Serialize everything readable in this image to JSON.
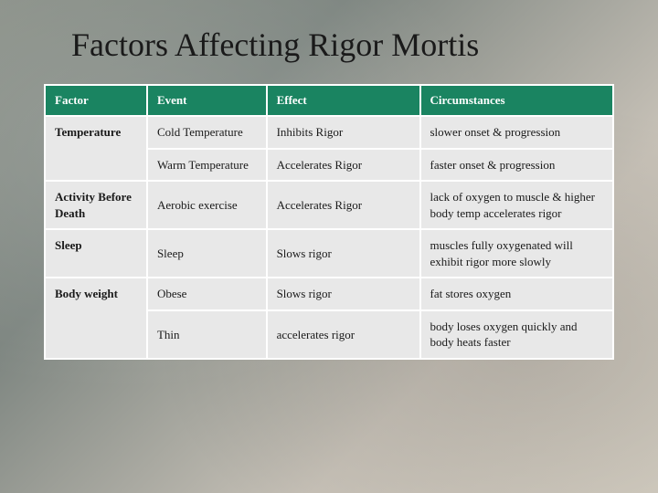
{
  "title": "Factors Affecting Rigor Mortis",
  "headers": {
    "c0": "Factor",
    "c1": "Event",
    "c2": "Effect",
    "c3": "Circumstances"
  },
  "rows": {
    "r0": {
      "factor": "",
      "event": "Cold Temperature",
      "effect": "Inhibits Rigor",
      "circ": "slower onset & progression"
    },
    "r1": {
      "factor": "Temperature",
      "event": "Warm Temperature",
      "effect": "Accelerates Rigor",
      "circ": "faster onset & progression"
    },
    "r2": {
      "factor": "Activity Before Death",
      "event": "Aerobic exercise",
      "effect": "Accelerates Rigor",
      "circ": "lack of oxygen to muscle & higher body temp accelerates rigor"
    },
    "r3": {
      "factor": "Sleep",
      "event": "Sleep",
      "effect": "Slows rigor",
      "circ": "muscles fully oxygenated will exhibit rigor more slowly"
    },
    "r4": {
      "factor": "",
      "event": "Obese",
      "effect": "Slows rigor",
      "circ": "fat stores oxygen"
    },
    "r5": {
      "factor": "Body weight",
      "event": "Thin",
      "effect": "accelerates rigor",
      "circ": "body loses oxygen quickly and body heats faster"
    }
  },
  "colors": {
    "header_bg": "#1a8461",
    "header_fg": "#ffffff",
    "cell_bg": "#e8e8e8",
    "border": "#ffffff",
    "text": "#1a1a1a"
  }
}
